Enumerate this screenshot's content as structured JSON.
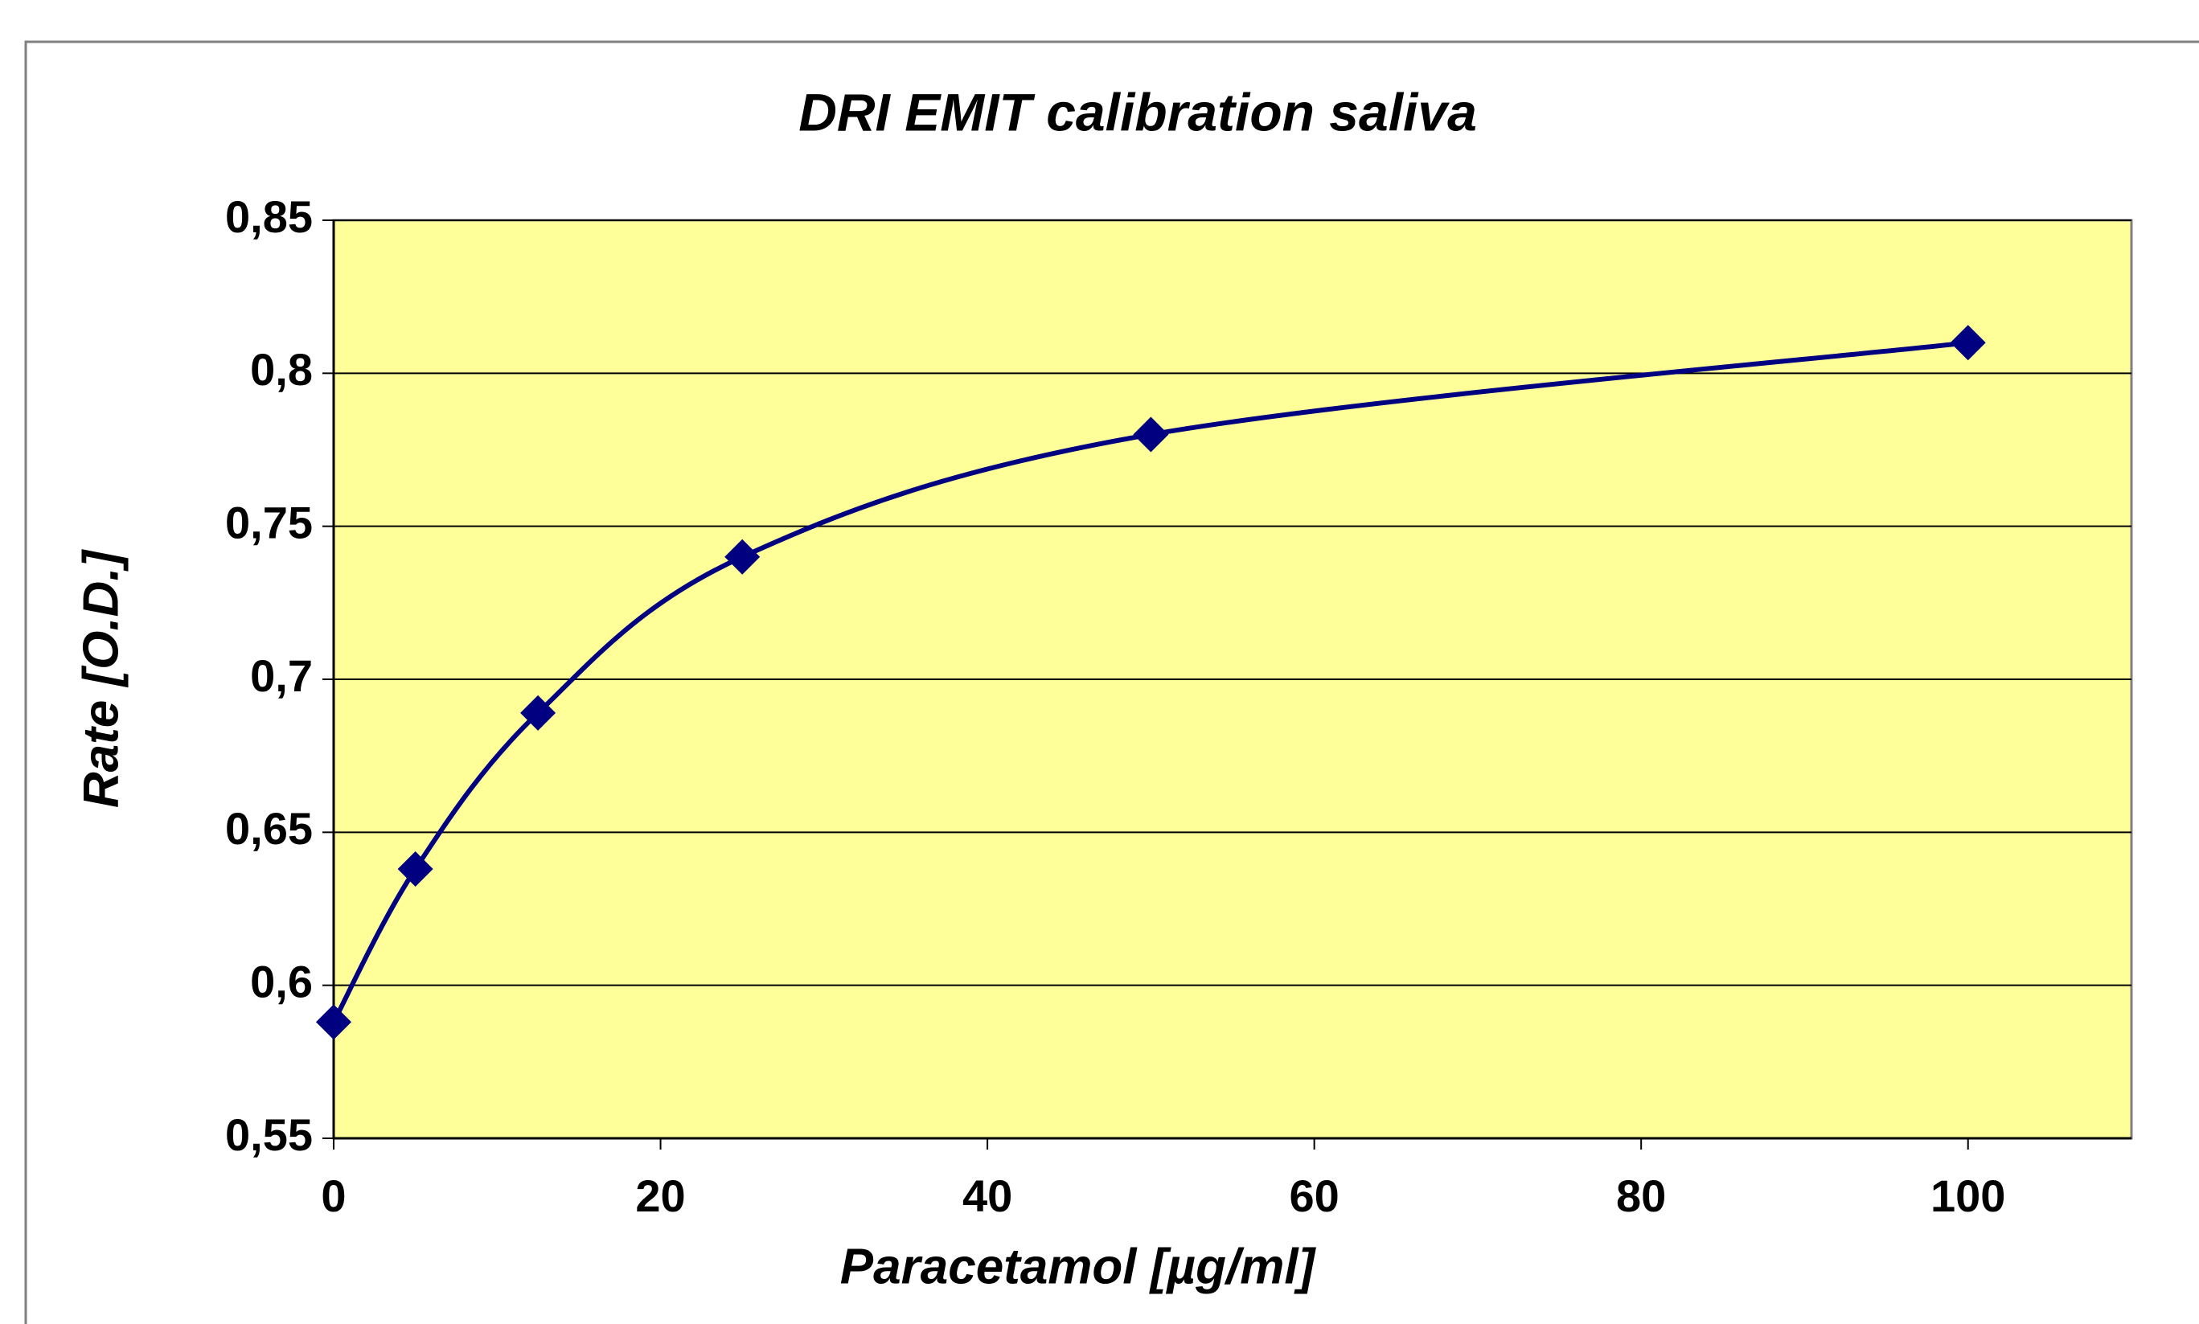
{
  "chart_data": {
    "type": "line",
    "smooth": true,
    "title": "DRI  EMIT  calibration saliva",
    "x_label": "Paracetamol [µg/ml]",
    "y_label": "Rate [O.D.]",
    "x": [
      0,
      5,
      12.5,
      25,
      50,
      100
    ],
    "series": [
      {
        "color": "#000080",
        "values": [
          0.588,
          0.638,
          0.689,
          0.74,
          0.78,
          0.81
        ]
      }
    ],
    "xlim": [
      0,
      110
    ],
    "xticks": [
      0,
      20,
      40,
      60,
      80,
      100
    ],
    "ylim": [
      0.55,
      0.85
    ],
    "yticks": [
      {
        "value": 0.55,
        "label": "0,55"
      },
      {
        "value": 0.6,
        "label": "0,6"
      },
      {
        "value": 0.65,
        "label": "0,65"
      },
      {
        "value": 0.7,
        "label": "0,7"
      },
      {
        "value": 0.75,
        "label": "0,75"
      },
      {
        "value": 0.8,
        "label": "0,8"
      },
      {
        "value": 0.85,
        "label": "0,85"
      }
    ],
    "grid": true,
    "plot_background": "#ffff99"
  }
}
